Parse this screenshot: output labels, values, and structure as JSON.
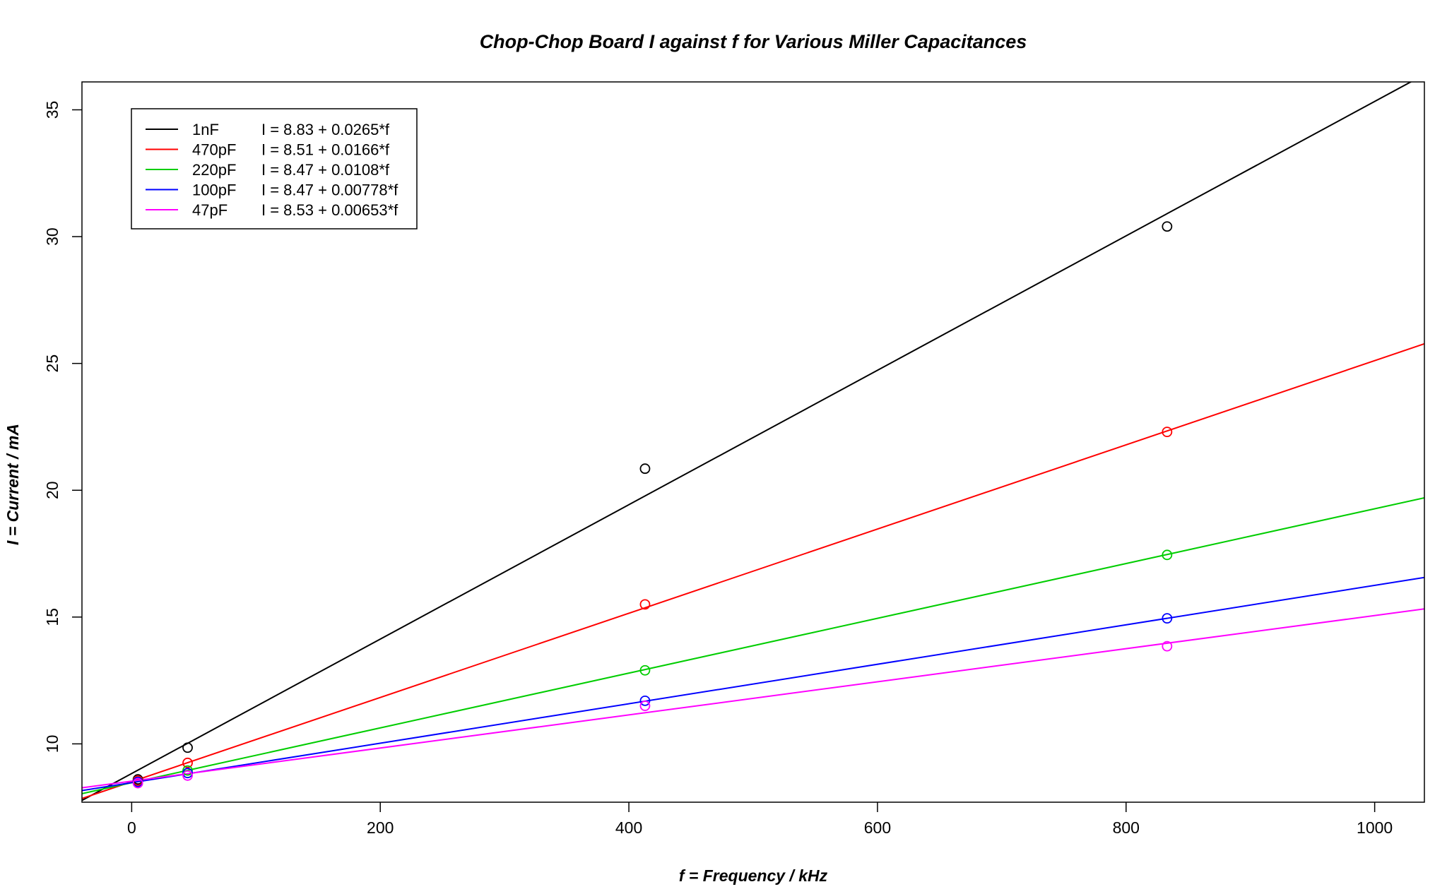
{
  "chart_data": {
    "type": "scatter",
    "title": "Chop-Chop Board I against f for Various Miller Capacitances",
    "xlabel": "f = Frequency / kHz",
    "ylabel": "I = Current / mA",
    "xlim": [
      -40,
      1040
    ],
    "ylim": [
      7.7,
      36.1
    ],
    "x_ticks": [
      0,
      200,
      400,
      600,
      800,
      1000
    ],
    "y_ticks": [
      10,
      15,
      20,
      25,
      30,
      35
    ],
    "grid": false,
    "legend_position": "top-left",
    "x": [
      5,
      45,
      413,
      833
    ],
    "series": [
      {
        "name": "1nF",
        "fit_label": "I = 8.83 + 0.0265*f",
        "color": "#000000",
        "intercept": 8.83,
        "slope": 0.0265,
        "values": [
          8.6,
          9.85,
          20.85,
          30.4
        ]
      },
      {
        "name": "470pF",
        "fit_label": "I = 8.51 + 0.0166*f",
        "color": "#ff0000",
        "intercept": 8.51,
        "slope": 0.0166,
        "values": [
          8.55,
          9.25,
          15.5,
          22.3
        ]
      },
      {
        "name": "220pF",
        "fit_label": "I = 8.47 + 0.0108*f",
        "color": "#00cd00",
        "intercept": 8.47,
        "slope": 0.0108,
        "values": [
          8.5,
          8.95,
          12.9,
          17.45
        ]
      },
      {
        "name": "100pF",
        "fit_label": "I = 8.47 + 0.00778*f",
        "color": "#0000ff",
        "intercept": 8.47,
        "slope": 0.00778,
        "values": [
          8.5,
          8.85,
          11.7,
          14.95
        ]
      },
      {
        "name": "47pF",
        "fit_label": "I = 8.53 + 0.00653*f",
        "color": "#ff00ff",
        "intercept": 8.53,
        "slope": 0.00653,
        "values": [
          8.45,
          8.75,
          11.5,
          13.85
        ]
      }
    ]
  }
}
